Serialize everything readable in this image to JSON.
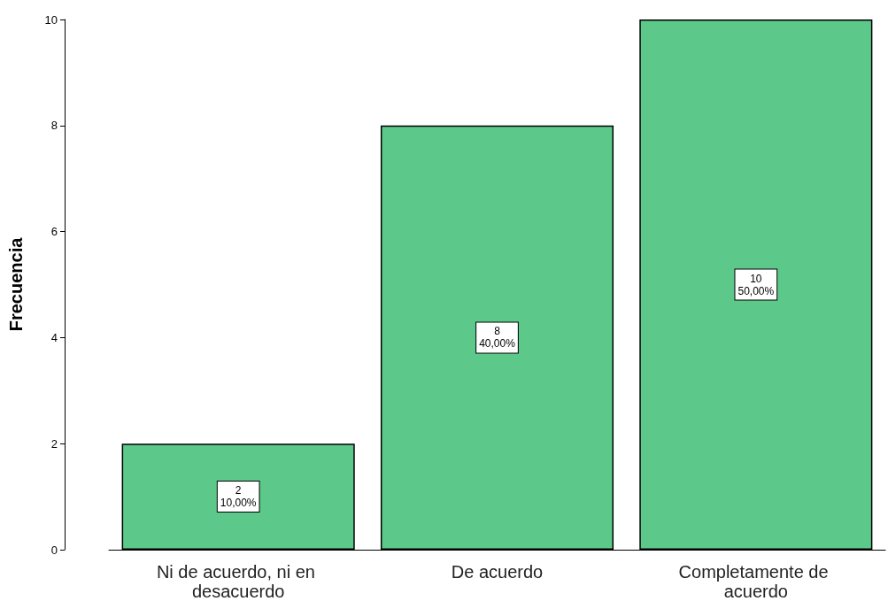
{
  "chart_data": {
    "type": "bar",
    "ylabel": "Frecuencia",
    "categories": [
      "Ni de acuerdo, ni en desacuerdo",
      "De acuerdo",
      "Completamente de acuerdo"
    ],
    "values": [
      2,
      8,
      10
    ],
    "value_labels": [
      "2\n10,00%",
      "8\n40,00%",
      "10\n50,00%"
    ],
    "color": "#5cc98a",
    "ylim": [
      0,
      10
    ],
    "yticks": [
      0,
      2,
      4,
      6,
      8,
      10
    ],
    "grid": false
  }
}
